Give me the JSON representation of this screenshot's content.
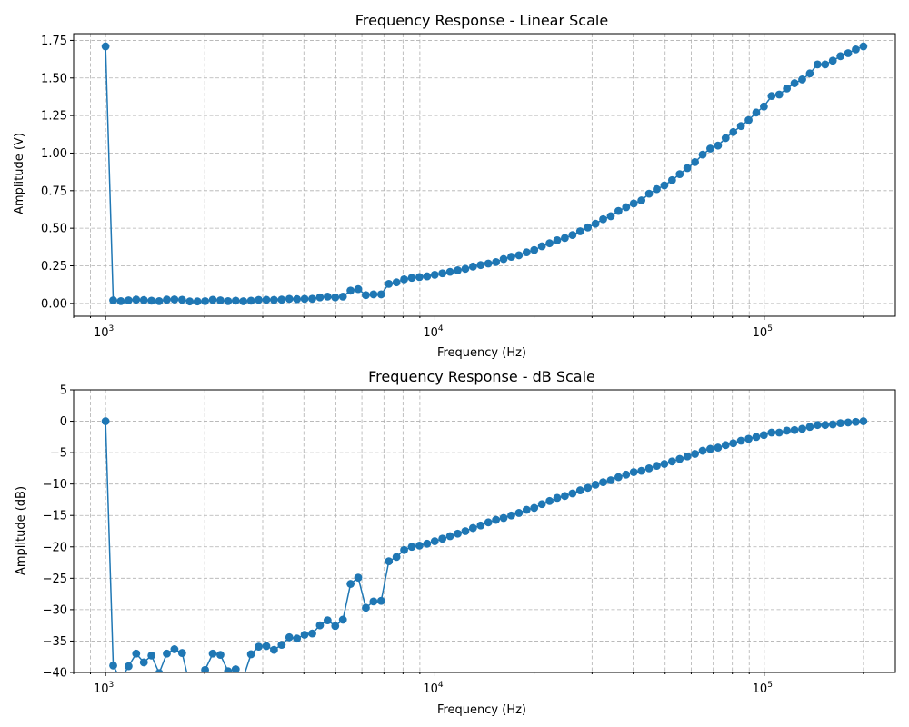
{
  "chart_data": [
    {
      "type": "line",
      "title": "Frequency Response - Linear Scale",
      "xlabel": "Frequency (Hz)",
      "ylabel": "Amplitude (V)",
      "xscale": "log",
      "xlim": [
        800,
        250000
      ],
      "ylim": [
        -0.0856,
        1.795
      ],
      "xticks": [
        {
          "value": 1000,
          "base": "10",
          "exp": "3"
        },
        {
          "value": 10000,
          "base": "10",
          "exp": "4"
        },
        {
          "value": 100000,
          "base": "10",
          "exp": "5"
        }
      ],
      "yticks": [
        {
          "value": 0,
          "label": "0.00"
        },
        {
          "value": 0.25,
          "label": "0.25"
        },
        {
          "value": 0.5,
          "label": "0.50"
        },
        {
          "value": 0.75,
          "label": "0.75"
        },
        {
          "value": 1.0,
          "label": "1.00"
        },
        {
          "value": 1.25,
          "label": "1.25"
        },
        {
          "value": 1.5,
          "label": "1.50"
        },
        {
          "value": 1.75,
          "label": "1.75"
        }
      ],
      "grid": true,
      "color": "#1f77b4",
      "series": [
        {
          "values": [
            1.71,
            0.02,
            0.015,
            0.02,
            0.025,
            0.022,
            0.018,
            0.015,
            0.025,
            0.026,
            0.024,
            0.013,
            0.013,
            0.015,
            0.024,
            0.02,
            0.015,
            0.018,
            0.014,
            0.018,
            0.023,
            0.024,
            0.023,
            0.025,
            0.03,
            0.028,
            0.03,
            0.031,
            0.04,
            0.045,
            0.04,
            0.045,
            0.085,
            0.095,
            0.055,
            0.06,
            0.06,
            0.13,
            0.14,
            0.16,
            0.17,
            0.175,
            0.18,
            0.19,
            0.2,
            0.21,
            0.22,
            0.23,
            0.245,
            0.255,
            0.265,
            0.275,
            0.295,
            0.31,
            0.32,
            0.34,
            0.355,
            0.38,
            0.4,
            0.42,
            0.435,
            0.455,
            0.48,
            0.505,
            0.53,
            0.56,
            0.58,
            0.615,
            0.64,
            0.665,
            0.685,
            0.73,
            0.76,
            0.785,
            0.82,
            0.86,
            0.9,
            0.94,
            0.99,
            1.03,
            1.05,
            1.1,
            1.14,
            1.18,
            1.22,
            1.27,
            1.31,
            1.38,
            1.39,
            1.43,
            1.465,
            1.49,
            1.53,
            1.59,
            1.59,
            1.615,
            1.645,
            1.665,
            1.69,
            1.71
          ]
        }
      ]
    },
    {
      "type": "line",
      "title": "Frequency Response - dB Scale",
      "xlabel": "Frequency (Hz)",
      "ylabel": "Amplitude (dB)",
      "xscale": "log",
      "xlim": [
        800,
        250000
      ],
      "ylim": [
        -40,
        5
      ],
      "xticks": [
        {
          "value": 1000,
          "base": "10",
          "exp": "3"
        },
        {
          "value": 10000,
          "base": "10",
          "exp": "4"
        },
        {
          "value": 100000,
          "base": "10",
          "exp": "5"
        }
      ],
      "yticks": [
        {
          "value": 5,
          "label": "5"
        },
        {
          "value": 0,
          "label": "0"
        },
        {
          "value": -5,
          "label": "−5"
        },
        {
          "value": -10,
          "label": "−10"
        },
        {
          "value": -15,
          "label": "−15"
        },
        {
          "value": -20,
          "label": "−20"
        },
        {
          "value": -25,
          "label": "−25"
        },
        {
          "value": -30,
          "label": "−30"
        },
        {
          "value": -35,
          "label": "−35"
        },
        {
          "value": -40,
          "label": "−40"
        }
      ],
      "grid": true,
      "color": "#1f77b4",
      "series": [
        {
          "values": [
            0,
            -38.9,
            -41.2,
            -39.0,
            -37.0,
            -38.4,
            -37.3,
            -40.1,
            -37.0,
            -36.3,
            -36.9,
            -42.0,
            -42.0,
            -39.6,
            -37.0,
            -37.2,
            -39.8,
            -39.5,
            -40.8,
            -37.1,
            -35.9,
            -35.8,
            -36.4,
            -35.6,
            -34.4,
            -34.6,
            -34.0,
            -33.8,
            -32.5,
            -31.7,
            -32.6,
            -31.6,
            -25.9,
            -24.9,
            -29.7,
            -28.7,
            -28.6,
            -22.3,
            -21.6,
            -20.5,
            -20.0,
            -19.8,
            -19.5,
            -19.1,
            -18.7,
            -18.3,
            -17.9,
            -17.5,
            -17.0,
            -16.6,
            -16.1,
            -15.7,
            -15.4,
            -15.0,
            -14.6,
            -14.1,
            -13.8,
            -13.2,
            -12.7,
            -12.2,
            -11.9,
            -11.5,
            -11.0,
            -10.6,
            -10.1,
            -9.7,
            -9.4,
            -8.9,
            -8.5,
            -8.1,
            -7.9,
            -7.5,
            -7.1,
            -6.8,
            -6.4,
            -6.0,
            -5.6,
            -5.2,
            -4.7,
            -4.4,
            -4.2,
            -3.8,
            -3.5,
            -3.1,
            -2.8,
            -2.5,
            -2.2,
            -1.8,
            -1.8,
            -1.5,
            -1.4,
            -1.2,
            -0.9,
            -0.6,
            -0.6,
            -0.5,
            -0.3,
            -0.2,
            -0.1,
            0
          ]
        }
      ]
    }
  ]
}
